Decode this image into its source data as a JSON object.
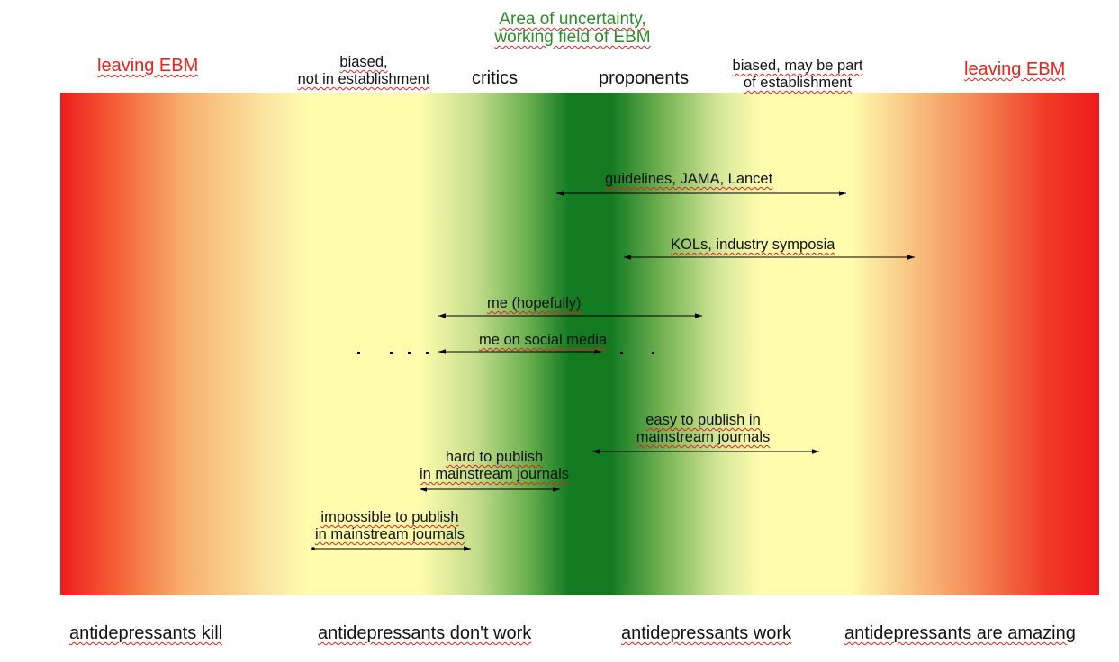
{
  "header": {
    "uncertainty_line1": "Area of uncertainty,",
    "uncertainty_line2": "working field of EBM",
    "leaving_left": "leaving EBM",
    "leaving_right": "leaving EBM",
    "biased_left_line1": "biased,",
    "biased_left_line2": "not in establishment",
    "critics": "critics",
    "proponents": "proponents",
    "biased_right_line1": "biased, may be part",
    "biased_right_line2": "of establishment"
  },
  "arrows": {
    "guidelines": "guidelines, JAMA, Lancet",
    "kols": "KOLs, industry symposia",
    "me_hopefully": "me (hopefully)",
    "me_social": "me on social media",
    "easy_line1": "easy to publish in",
    "easy_line2": "mainstream journals",
    "hard_line1": "hard to publish",
    "hard_line2": "in mainstream journals",
    "impossible_line1": "impossible to publish",
    "impossible_line2": "in mainstream journals"
  },
  "footer": {
    "kill": "antidepressants kill",
    "dont_work": "antidepressants don't work",
    "work": "antidepressants work",
    "amazing": "antidepressants are amazing"
  },
  "colors": {
    "extreme": "#ee1c1c",
    "biased": "#fffdad",
    "center": "#137a22",
    "leaving_text": "#e8231d",
    "uncertainty_text": "#2f8a2a"
  }
}
